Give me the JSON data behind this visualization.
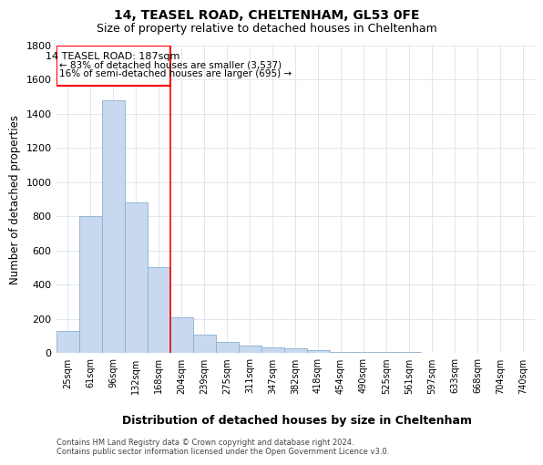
{
  "title1": "14, TEASEL ROAD, CHELTENHAM, GL53 0FE",
  "title2": "Size of property relative to detached houses in Cheltenham",
  "xlabel": "Distribution of detached houses by size in Cheltenham",
  "ylabel": "Number of detached properties",
  "categories": [
    "25sqm",
    "61sqm",
    "96sqm",
    "132sqm",
    "168sqm",
    "204sqm",
    "239sqm",
    "275sqm",
    "311sqm",
    "347sqm",
    "382sqm",
    "418sqm",
    "454sqm",
    "490sqm",
    "525sqm",
    "561sqm",
    "597sqm",
    "633sqm",
    "668sqm",
    "704sqm",
    "740sqm"
  ],
  "values": [
    130,
    800,
    1480,
    880,
    500,
    210,
    105,
    65,
    45,
    30,
    25,
    15,
    8,
    5,
    4,
    3,
    2,
    2,
    2,
    1,
    1
  ],
  "bar_color": "#c8d8ee",
  "bar_edge_color": "#8ab0d0",
  "red_line_index": 5,
  "annotation_title": "14 TEASEL ROAD: 187sqm",
  "annotation_line1": "← 83% of detached houses are smaller (3,537)",
  "annotation_line2": "16% of semi-detached houses are larger (695) →",
  "footnote1": "Contains HM Land Registry data © Crown copyright and database right 2024.",
  "footnote2": "Contains public sector information licensed under the Open Government Licence v3.0.",
  "ylim": [
    0,
    1800
  ],
  "yticks": [
    0,
    200,
    400,
    600,
    800,
    1000,
    1200,
    1400,
    1600,
    1800
  ],
  "grid_color": "#d8dce8"
}
